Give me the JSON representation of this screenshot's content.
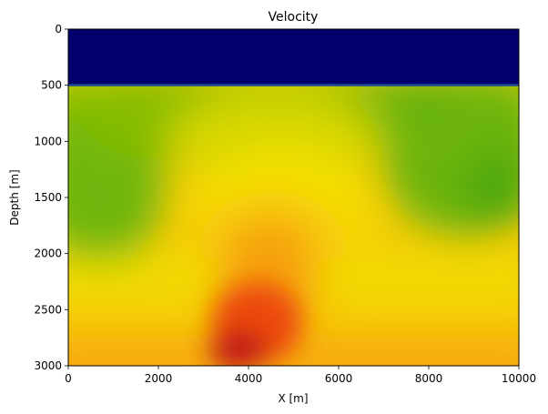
{
  "chart_data": {
    "type": "heatmap",
    "title": "Velocity",
    "xlabel": "X [m]",
    "ylabel": "Depth [m]",
    "xlim": [
      0,
      10000
    ],
    "ylim": [
      3000,
      0
    ],
    "x_ticks": [
      0,
      2000,
      4000,
      6000,
      8000,
      10000
    ],
    "y_ticks": [
      0,
      500,
      1000,
      1500,
      2000,
      2500,
      3000
    ],
    "x_tick_labels": [
      "0",
      "2000",
      "4000",
      "6000",
      "8000",
      "10000"
    ],
    "y_tick_labels": [
      "0",
      "500",
      "1000",
      "1500",
      "2000",
      "2500",
      "3000"
    ],
    "water_layer": {
      "depth_top": 0,
      "depth_bottom": 500,
      "color": "#02006c"
    },
    "colors": {
      "dark_green": "#48a70a",
      "green": "#6cb60a",
      "yellow_green": "#c6d200",
      "yellow": "#f0e000",
      "gold": "#f8cc08",
      "orange": "#f6a010",
      "red": "#e82a10",
      "dark_red": "#b40a16"
    }
  }
}
